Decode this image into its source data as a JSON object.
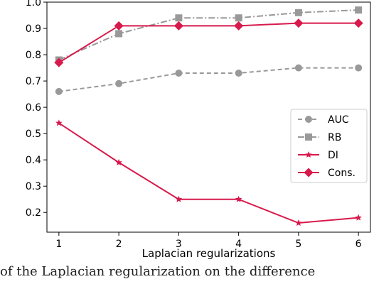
{
  "chart_data": {
    "type": "line",
    "x": [
      1,
      2,
      3,
      4,
      5,
      6
    ],
    "xlabel": "Laplacian regularizations",
    "ylabel": "",
    "xlim": [
      0.8,
      6.2
    ],
    "ylim": [
      0.125,
      1.0
    ],
    "xticks": [
      "1",
      "2",
      "3",
      "4",
      "5",
      "6"
    ],
    "yticks": [
      "0.2",
      "0.3",
      "0.4",
      "0.5",
      "0.6",
      "0.7",
      "0.8",
      "0.9",
      "1.0"
    ],
    "legend_position": "right",
    "series": [
      {
        "name": "AUC",
        "values": [
          0.66,
          0.69,
          0.73,
          0.73,
          0.75,
          0.75
        ],
        "color": "#999999",
        "marker": "circle",
        "linestyle": "dashed"
      },
      {
        "name": "RB",
        "values": [
          0.78,
          0.88,
          0.94,
          0.94,
          0.96,
          0.97
        ],
        "color": "#999999",
        "marker": "square",
        "linestyle": "dashdot"
      },
      {
        "name": "DI",
        "values": [
          0.54,
          0.39,
          0.25,
          0.25,
          0.16,
          0.18
        ],
        "color": "#d7194b",
        "marker": "star",
        "linestyle": "solid"
      },
      {
        "name": "Cons.",
        "values": [
          0.77,
          0.91,
          0.91,
          0.91,
          0.92,
          0.92
        ],
        "color": "#d7194b",
        "marker": "diamond",
        "linestyle": "solid"
      }
    ]
  },
  "caption": "of the Laplacian regularization on the difference"
}
